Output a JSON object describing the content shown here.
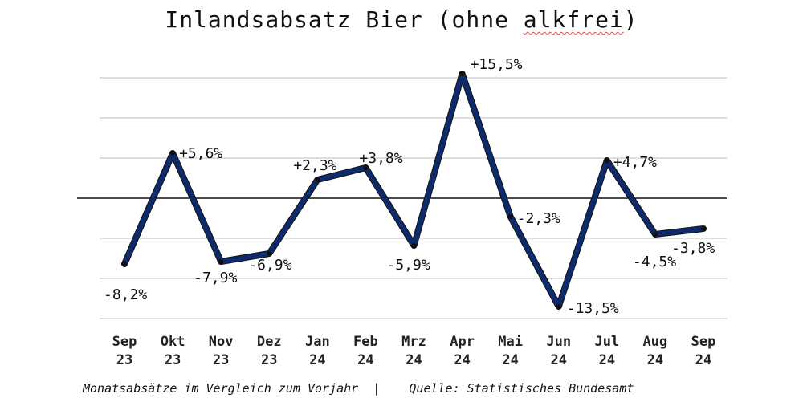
{
  "chart_data": {
    "type": "line",
    "title_main": "Inlandsabsatz Bier (ohne ",
    "title_underlined": "alkfrei",
    "title_end": ")",
    "categories": [
      [
        "Sep",
        "23"
      ],
      [
        "Okt",
        "23"
      ],
      [
        "Nov",
        "23"
      ],
      [
        "Dez",
        "23"
      ],
      [
        "Jan",
        "24"
      ],
      [
        "Feb",
        "24"
      ],
      [
        "Mrz",
        "24"
      ],
      [
        "Apr",
        "24"
      ],
      [
        "Mai",
        "24"
      ],
      [
        "Jun",
        "24"
      ],
      [
        "Jul",
        "24"
      ],
      [
        "Aug",
        "24"
      ],
      [
        "Sep",
        "24"
      ]
    ],
    "values": [
      -8.2,
      5.6,
      -7.9,
      -6.9,
      2.3,
      3.8,
      -5.9,
      15.5,
      -2.3,
      -13.5,
      4.7,
      -4.5,
      -3.8
    ],
    "labels": [
      "-8,2%",
      "+5,6%",
      "-7,9%",
      "-6,9%",
      "+2,3%",
      "+3,8%",
      "-5,9%",
      "+15,5%",
      "-2,3%",
      "-13,5%",
      "+4,7%",
      "-4,5%",
      "-3,8%"
    ],
    "ylim": [
      -15,
      17.5
    ],
    "grid_values": [
      15,
      10,
      5,
      -5,
      -10,
      -15
    ],
    "grid": true,
    "legend": "none",
    "colors": {
      "line": "#0d2a6b",
      "grid": "#bdbdbd"
    }
  },
  "footer": {
    "left": "Monatsabsätze im Vergleich zum Vorjahr",
    "separator": "|",
    "right": "Quelle: Statistisches Bundesamt"
  }
}
